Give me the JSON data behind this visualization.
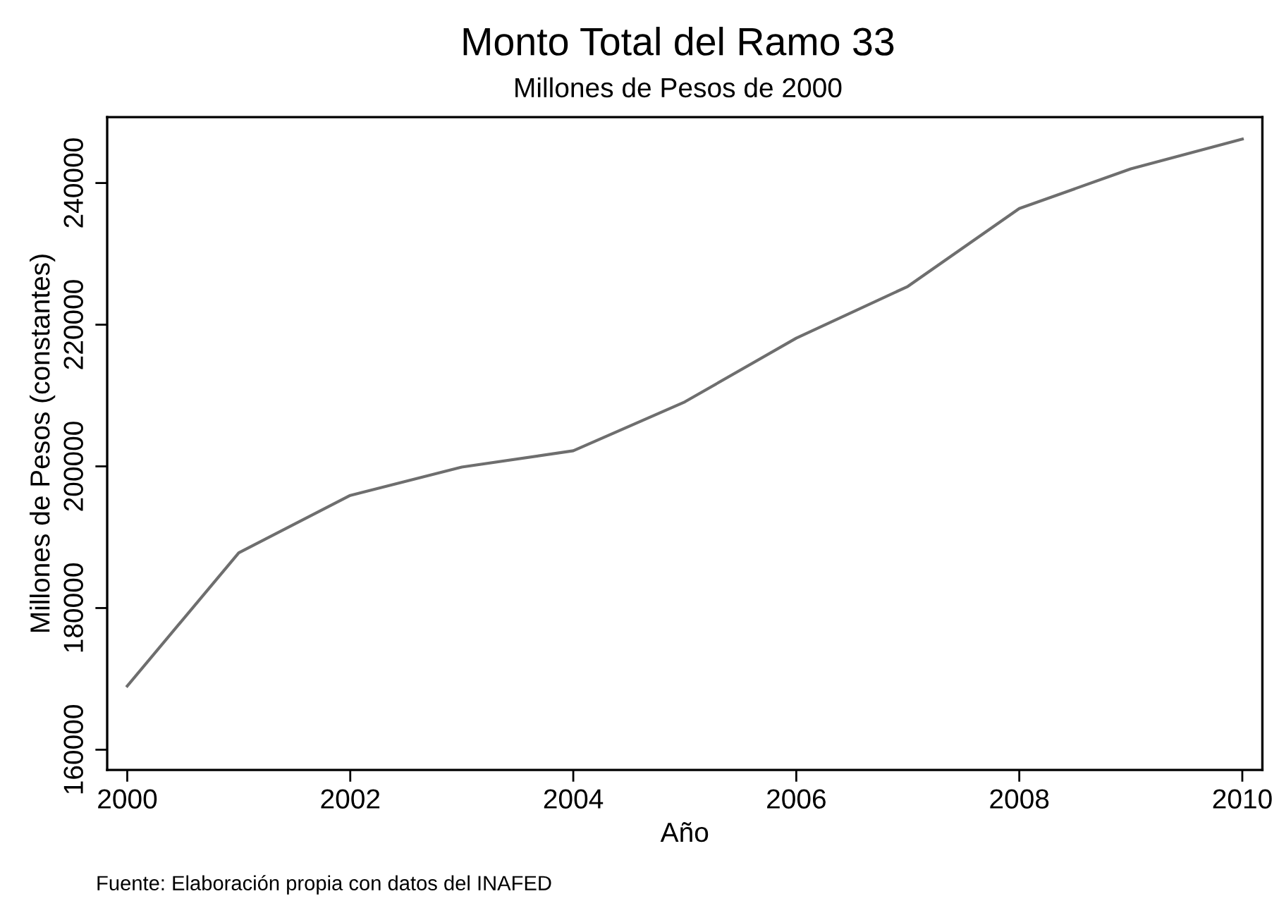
{
  "chart_data": {
    "type": "line",
    "title": "Monto Total del Ramo 33",
    "subtitle": "Millones de Pesos de 2000",
    "xlabel": "Año",
    "ylabel": "Millones de Pesos (constantes)",
    "annotations": [
      "Fuente: Elaboración propia con datos del INAFED"
    ],
    "x": [
      2000,
      2001,
      2002,
      2003,
      2004,
      2005,
      2006,
      2007,
      2008,
      2009,
      2010
    ],
    "series": [
      {
        "color": "#6e6e6e",
        "values": [
          169000,
          187800,
          195900,
          199900,
          202200,
          209100,
          218100,
          225400,
          236400,
          242000,
          246200
        ]
      }
    ],
    "xlim": [
      1999.82,
      2010.18
    ],
    "ylim": [
      157150,
      249300
    ],
    "xticks": [
      2000,
      2002,
      2004,
      2006,
      2008,
      2010
    ],
    "yticks": [
      160000,
      180000,
      200000,
      220000,
      240000
    ],
    "grid": false,
    "legend": false,
    "marker": "none",
    "line_style": "solid"
  }
}
